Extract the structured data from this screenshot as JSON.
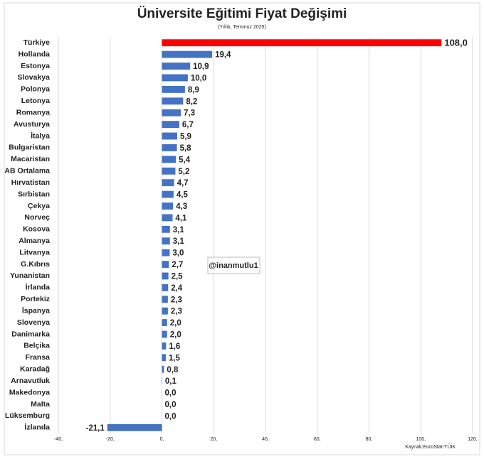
{
  "chart_data": {
    "type": "hbar",
    "title": "Üniversite Eğitimi Fiyat Değişimi",
    "subtitle": "(Yıllık, Temmuz 2025)",
    "source": "Kaynak:EuroStat-TÜİK",
    "annotation": "@inanmutlu1",
    "categories": [
      "Türkiye",
      "Hollanda",
      "Estonya",
      "Slovakya",
      "Polonya",
      "Letonya",
      "Romanya",
      "Avusturya",
      "İtalya",
      "Bulgaristan",
      "Macaristan",
      "AB Ortalama",
      "Hırvatistan",
      "Sırbistan",
      "Çekya",
      "Norveç",
      "Kosova",
      "Almanya",
      "Litvanya",
      "G.Kıbrıs",
      "Yunanistan",
      "İrlanda",
      "Portekiz",
      "İspanya",
      "Slovenya",
      "Danimarka",
      "Belçika",
      "Fransa",
      "Karadağ",
      "Arnavutluk",
      "Makedonya",
      "Malta",
      "Lüksemburg",
      "İzlanda"
    ],
    "values": [
      108.0,
      19.4,
      10.9,
      10.0,
      8.9,
      8.2,
      7.3,
      6.7,
      5.9,
      5.8,
      5.4,
      5.2,
      4.7,
      4.5,
      4.3,
      4.1,
      3.1,
      3.1,
      3.0,
      2.7,
      2.5,
      2.4,
      2.3,
      2.3,
      2.0,
      2.0,
      1.6,
      1.5,
      0.8,
      0.1,
      0.0,
      0.0,
      0.0,
      -21.1
    ],
    "value_labels": [
      "108,0",
      "19,4",
      "10,9",
      "10,0",
      "8,9",
      "8,2",
      "7,3",
      "6,7",
      "5,9",
      "5,8",
      "5,4",
      "5,2",
      "4,7",
      "4,5",
      "4,3",
      "4,1",
      "3,1",
      "3,1",
      "3,0",
      "2,7",
      "2,5",
      "2,4",
      "2,3",
      "2,3",
      "2,0",
      "2,0",
      "1,6",
      "1,5",
      "0,8",
      "0,1",
      "0,0",
      "0,0",
      "0,0",
      "-21,1"
    ],
    "color": "#4472c4",
    "colors": [
      "#ff0000",
      "#4472c4",
      "#4472c4",
      "#4472c4",
      "#4472c4",
      "#4472c4",
      "#4472c4",
      "#4472c4",
      "#4472c4",
      "#4472c4",
      "#4472c4",
      "#4472c4",
      "#4472c4",
      "#4472c4",
      "#4472c4",
      "#4472c4",
      "#4472c4",
      "#4472c4",
      "#4472c4",
      "#4472c4",
      "#4472c4",
      "#4472c4",
      "#4472c4",
      "#4472c4",
      "#4472c4",
      "#4472c4",
      "#4472c4",
      "#4472c4",
      "#4472c4",
      "#4472c4",
      "#4472c4",
      "#4472c4",
      "#4472c4",
      "#4472c4"
    ],
    "xlim": [
      -40,
      120
    ],
    "xticks": [
      {
        "value": -40,
        "label": "-40,"
      },
      {
        "value": -20,
        "label": "-20,"
      },
      {
        "value": 0,
        "label": "0,"
      },
      {
        "value": 20,
        "label": "20,"
      },
      {
        "value": 40,
        "label": "40,"
      },
      {
        "value": 60,
        "label": "60,"
      },
      {
        "value": 80,
        "label": "80,"
      },
      {
        "value": 100,
        "label": "100,"
      },
      {
        "value": 120,
        "label": "120,"
      }
    ],
    "grid": true
  }
}
